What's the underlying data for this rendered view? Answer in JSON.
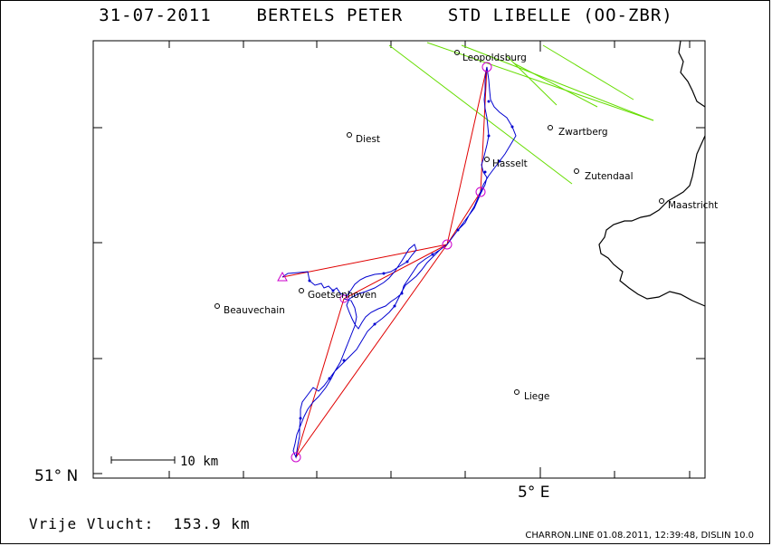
{
  "header": {
    "date": "31-07-2011",
    "pilot": "BERTELS PETER",
    "glider": "STD LIBELLE (OO-ZBR)"
  },
  "map": {
    "lat_label": "51° N",
    "lon_label": "5° E",
    "scale_label": "10 km",
    "places": [
      {
        "name": "Leopoldsburg"
      },
      {
        "name": "Diest"
      },
      {
        "name": "Zwartberg"
      },
      {
        "name": "Hasselt"
      },
      {
        "name": "Zutendaal"
      },
      {
        "name": "Maastricht"
      },
      {
        "name": "Goetsenhoven"
      },
      {
        "name": "Beauvechain"
      },
      {
        "name": "Liege"
      }
    ],
    "colors": {
      "track": "#0000d0",
      "task": "#e00000",
      "airspace": "#66dd00",
      "border": "#000000",
      "turnpoint": "#cc00cc"
    }
  },
  "footer": {
    "distance_label": "Vrije Vlucht:",
    "distance_value": "153.9 km",
    "credits": "CHARRON.LINE 01.08.2011, 12:39:48, DISLIN 10.0"
  }
}
